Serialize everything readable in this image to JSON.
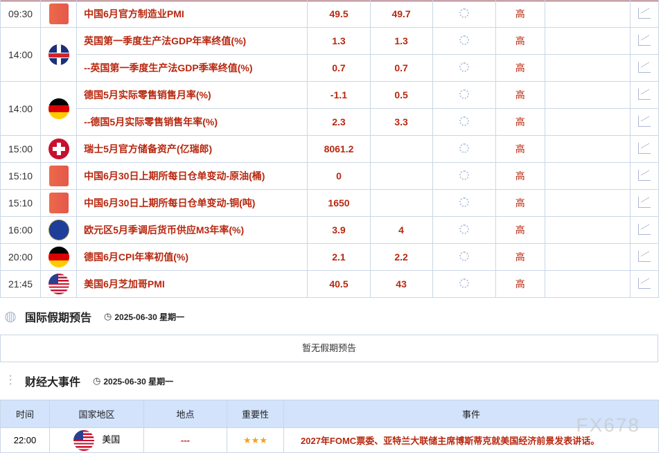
{
  "calendar": {
    "importance_label": "高",
    "rows": [
      {
        "time": "09:30",
        "flag": "cn",
        "name": "中国6月官方制造业PMI",
        "prev": "49.5",
        "forecast": "49.7"
      },
      {
        "time": "14:00",
        "flag": "uk",
        "name": "英国第一季度生产法GDP年率终值(%)",
        "prev": "1.3",
        "forecast": "1.3"
      },
      {
        "time": "",
        "flag": "",
        "name": "--英国第一季度生产法GDP季率终值(%)",
        "prev": "0.7",
        "forecast": "0.7"
      },
      {
        "time": "14:00",
        "flag": "de",
        "name": "德国5月实际零售销售月率(%)",
        "prev": "-1.1",
        "forecast": "0.5"
      },
      {
        "time": "",
        "flag": "",
        "name": "--德国5月实际零售销售年率(%)",
        "prev": "2.3",
        "forecast": "3.3"
      },
      {
        "time": "15:00",
        "flag": "ch",
        "name": "瑞士5月官方储备资产(亿瑞郎)",
        "prev": "8061.2",
        "forecast": ""
      },
      {
        "time": "15:10",
        "flag": "cn",
        "name": "中国6月30日上期所每日仓单变动-原油(桶)",
        "prev": "0",
        "forecast": ""
      },
      {
        "time": "15:10",
        "flag": "cn",
        "name": "中国6月30日上期所每日仓单变动-铜(吨)",
        "prev": "1650",
        "forecast": ""
      },
      {
        "time": "16:00",
        "flag": "eu",
        "name": "欧元区5月季调后货币供应M3年率(%)",
        "prev": "3.9",
        "forecast": "4"
      },
      {
        "time": "20:00",
        "flag": "de",
        "name": "德国6月CPI年率初值(%)",
        "prev": "2.1",
        "forecast": "2.2"
      },
      {
        "time": "21:45",
        "flag": "us",
        "name": "美国6月芝加哥PMI",
        "prev": "40.5",
        "forecast": "43"
      }
    ]
  },
  "holidays": {
    "title": "国际假期预告",
    "date": "2025-06-30 星期一",
    "empty_text": "暂无假期预告"
  },
  "events": {
    "title": "财经大事件",
    "date": "2025-06-30 星期一",
    "headers": [
      "时间",
      "国家地区",
      "地点",
      "重要性",
      "事件"
    ],
    "rows": [
      {
        "time": "22:00",
        "country": "美国",
        "place": "---",
        "stars": "★★★",
        "event": "2027年FOMC票委、亚特兰大联储主席博斯蒂克就美国经济前景发表讲话。"
      }
    ]
  },
  "watermark": "FX678"
}
